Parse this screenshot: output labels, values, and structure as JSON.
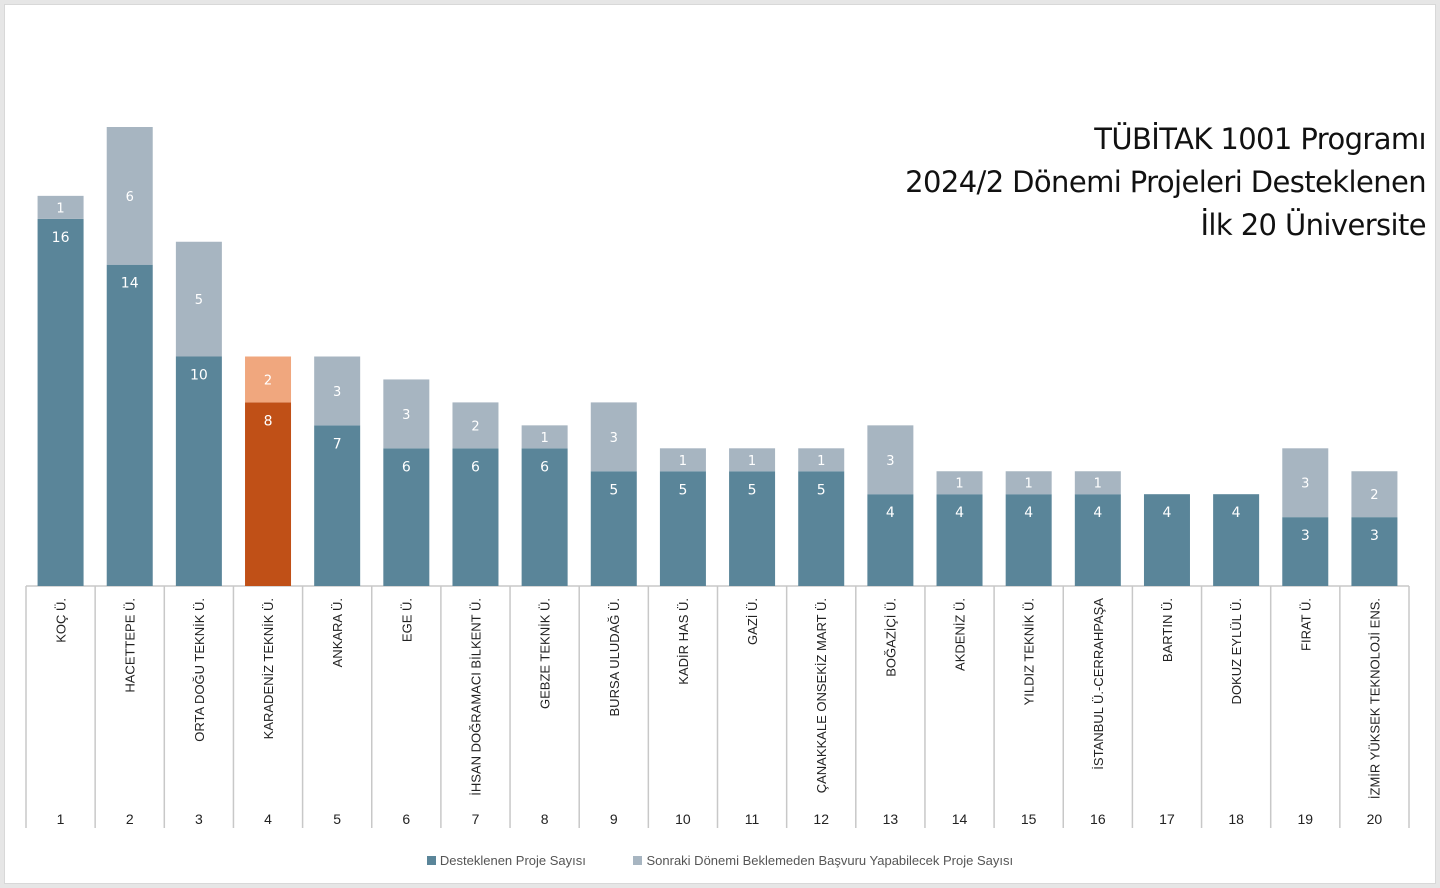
{
  "chart_data": {
    "type": "bar",
    "stacked": true,
    "title_lines": [
      "TÜBİTAK 1001 Programı",
      "2024/2 Dönemi Projeleri Desteklenen",
      "İlk 20 Üniversite"
    ],
    "categories": [
      "KOÇ Ü.",
      "HACETTEPE Ü.",
      "ORTA DOĞU TEKNİK Ü.",
      "KARADENİZ TEKNİK Ü.",
      "ANKARA Ü.",
      "EGE Ü.",
      "İHSAN DOĞRAMACI BİLKENT Ü.",
      "GEBZE TEKNİK Ü.",
      "BURSA ULUDAĞ Ü.",
      "KADİR HAS Ü.",
      "GAZİ Ü.",
      "ÇANAKKALE ONSEKİZ MART Ü.",
      "BOĞAZİÇİ Ü.",
      "AKDENİZ Ü.",
      "YILDIZ TEKNİK Ü.",
      "İSTANBUL Ü.-CERRAHPAŞA",
      "BARTIN Ü.",
      "DOKUZ EYLÜL Ü.",
      "FIRAT Ü.",
      "İZMİR YÜKSEK TEKNOLOJİ ENS."
    ],
    "ranks": [
      "1",
      "2",
      "3",
      "4",
      "5",
      "6",
      "7",
      "8",
      "9",
      "10",
      "11",
      "12",
      "13",
      "14",
      "15",
      "16",
      "17",
      "18",
      "19",
      "20"
    ],
    "series": [
      {
        "name": "Desteklenen Proje Sayısı",
        "color": "#5a8599",
        "values": [
          16,
          14,
          10,
          8,
          7,
          6,
          6,
          6,
          5,
          5,
          5,
          5,
          4,
          4,
          4,
          4,
          4,
          4,
          3,
          3
        ]
      },
      {
        "name": "Sonraki Dönemi Beklemeden Başvuru Yapabilecek Proje Sayısı",
        "color": "#a7b5c1",
        "values": [
          1,
          6,
          5,
          2,
          3,
          3,
          2,
          1,
          3,
          1,
          1,
          1,
          3,
          1,
          1,
          1,
          0,
          0,
          3,
          2
        ]
      }
    ],
    "highlight": {
      "index": 3,
      "base_color": "#c05017",
      "top_color": "#f0a77e"
    },
    "ylim": [
      0,
      20
    ],
    "grid": false,
    "legend_position": "bottom",
    "xlabel": "",
    "ylabel": ""
  }
}
